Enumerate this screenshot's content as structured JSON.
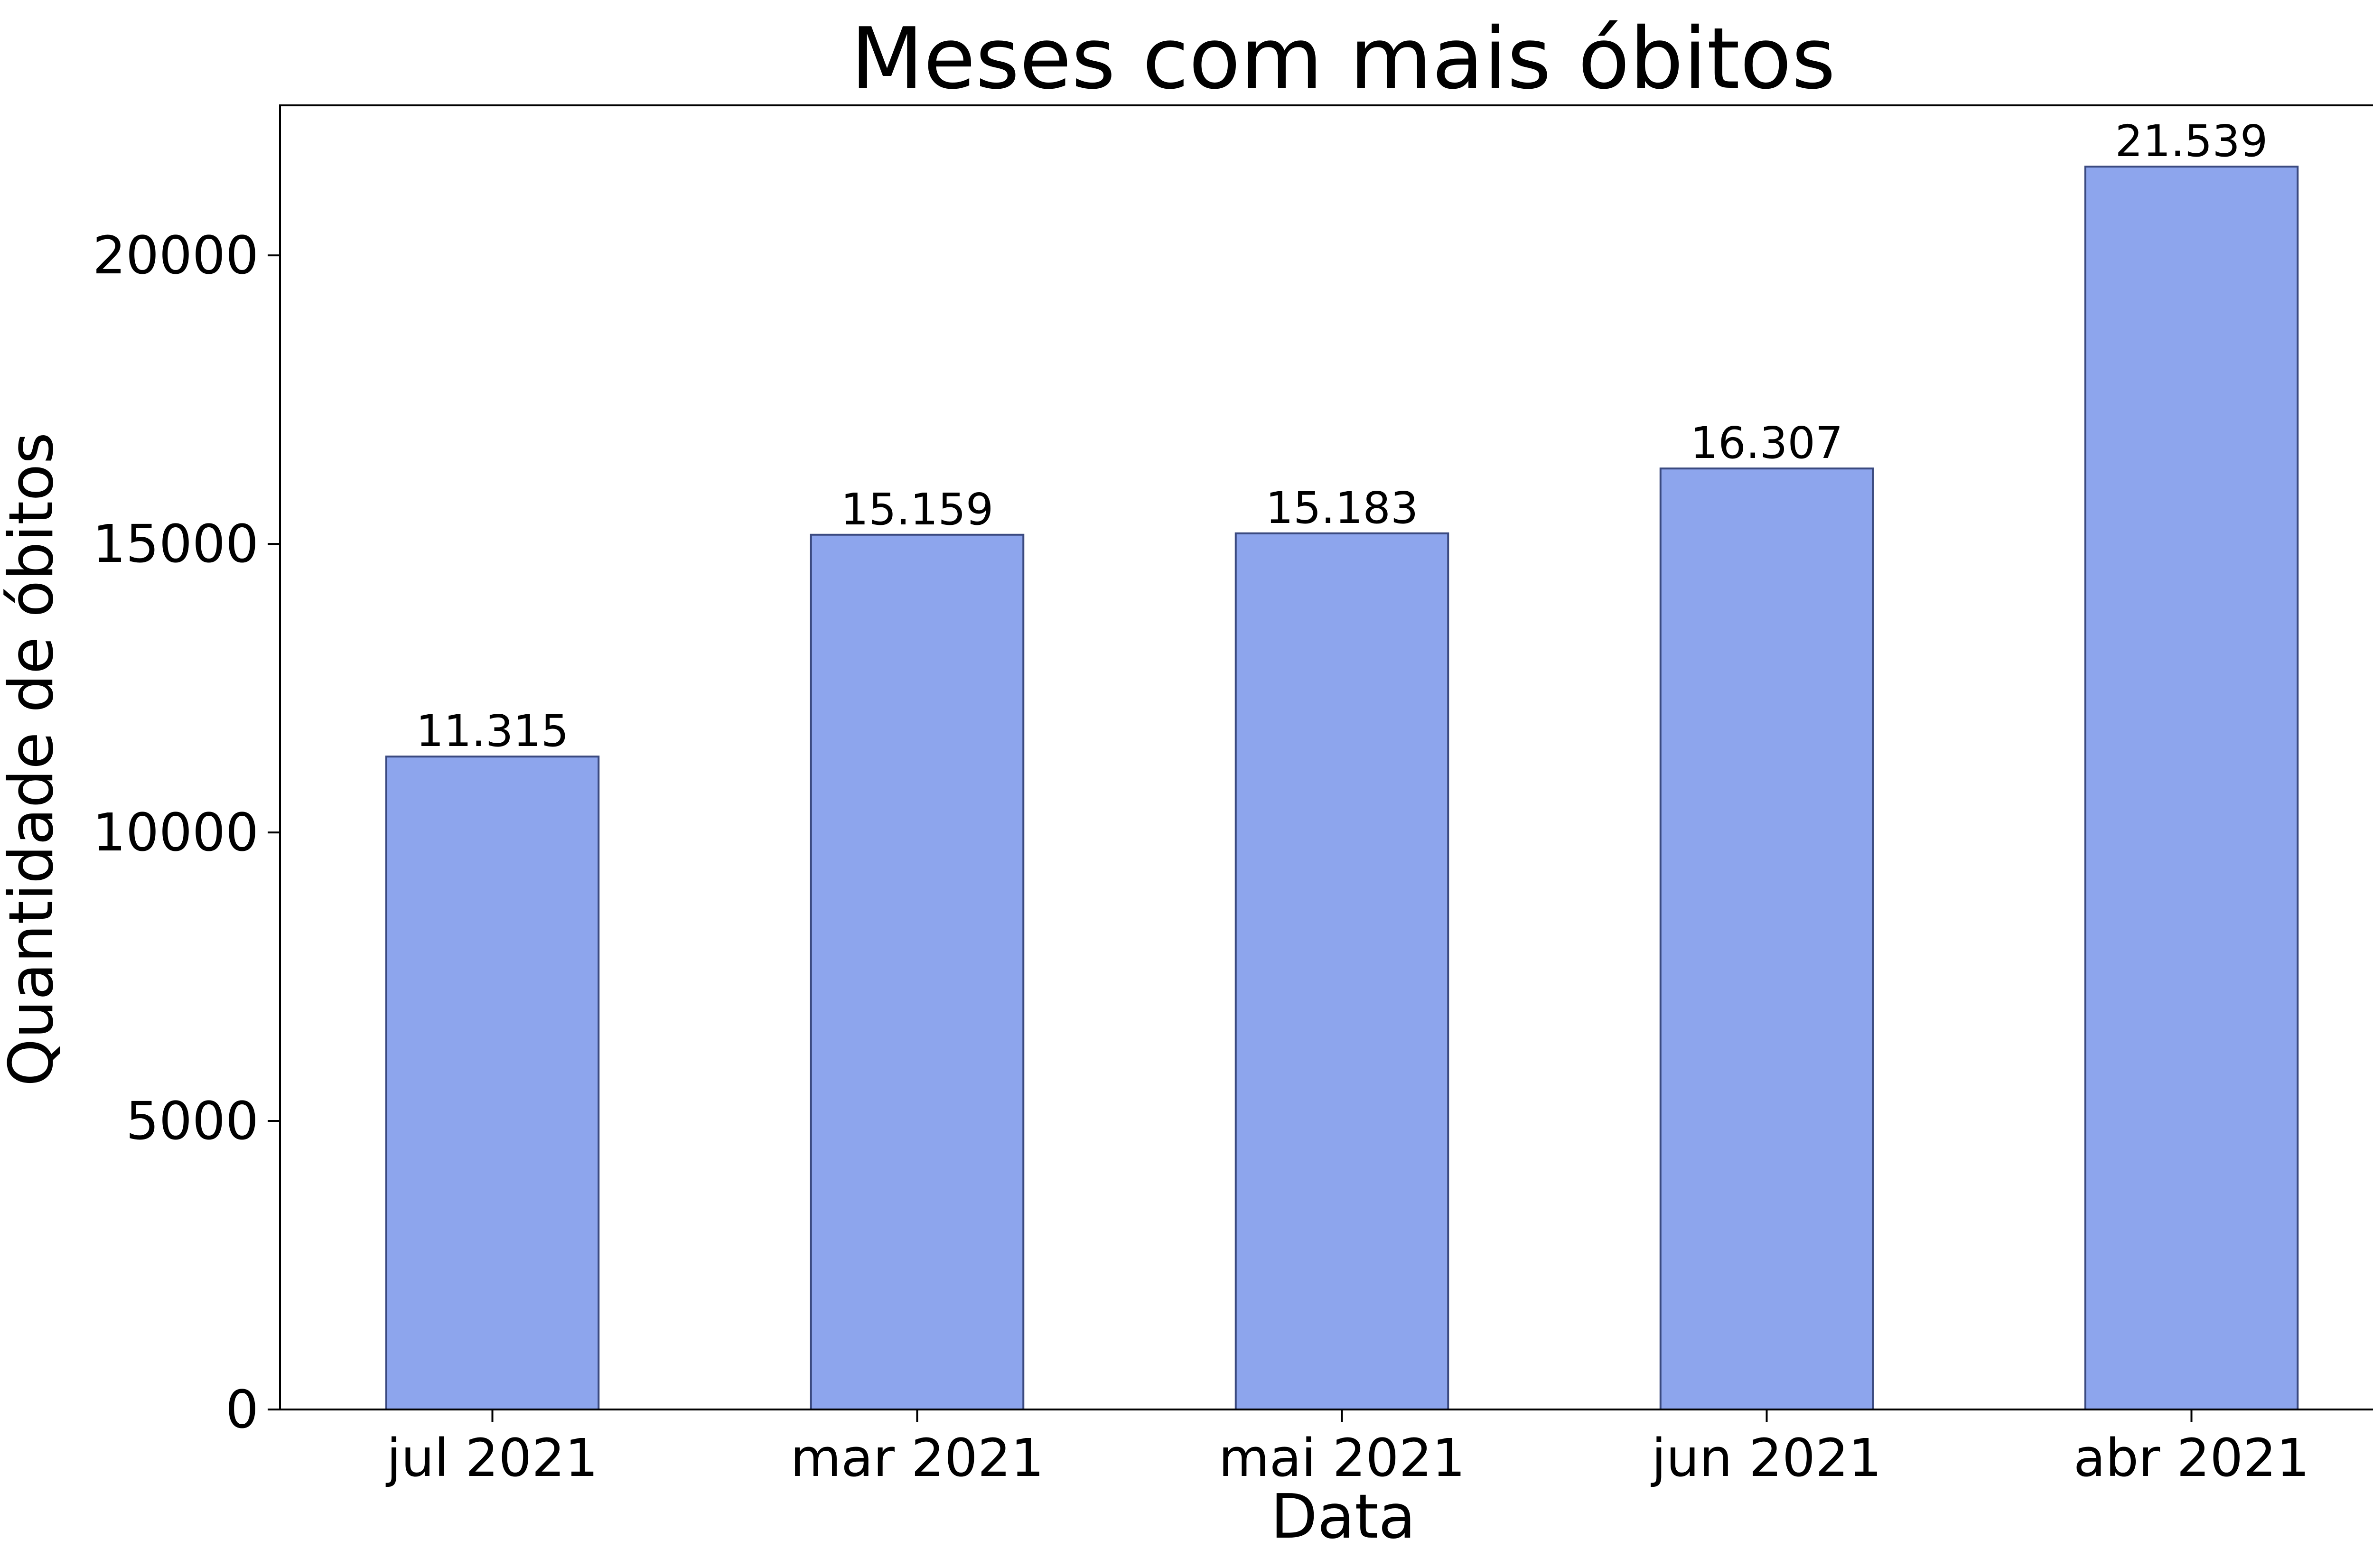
{
  "chart_data": {
    "type": "bar",
    "title": "Meses com mais óbitos",
    "xlabel": "Data",
    "ylabel": "Quantidade de óbitos",
    "categories": [
      "jul 2021",
      "mar 2021",
      "mai 2021",
      "jun 2021",
      "abr 2021"
    ],
    "values": [
      11315,
      15159,
      15183,
      16307,
      21539
    ],
    "value_labels": [
      "11.315",
      "15.159",
      "15.183",
      "16.307",
      "21.539"
    ],
    "ylim": [
      0,
      22600
    ],
    "yticks": [
      0,
      5000,
      10000,
      15000,
      20000
    ],
    "ytick_labels": [
      "0",
      "5000",
      "10000",
      "15000",
      "20000"
    ],
    "grid": false,
    "legend": false,
    "colors": {
      "bar_fill": "#8da5ed",
      "bar_edge": "#3b4a80",
      "axis": "#000000",
      "text": "#000000"
    }
  }
}
